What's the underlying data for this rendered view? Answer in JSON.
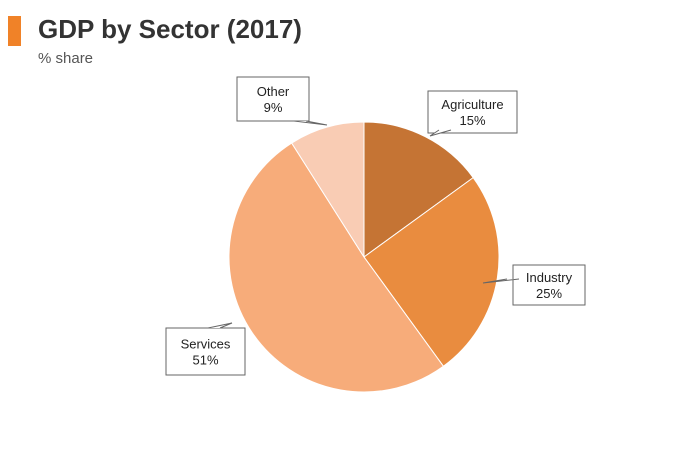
{
  "colors": {
    "accent": "#F08228"
  },
  "chart_data": {
    "type": "pie",
    "title": "GDP by Sector (2017)",
    "subtitle": "% share",
    "start_angle": "12 o'clock",
    "direction": "clockwise",
    "slices": [
      {
        "label": "Agriculture",
        "value": 15,
        "value_label": "15%",
        "color": "#C57434"
      },
      {
        "label": "Industry",
        "value": 25,
        "value_label": "25%",
        "color": "#E98C3F"
      },
      {
        "label": "Services",
        "value": 51,
        "value_label": "51%",
        "color": "#F7AC7A"
      },
      {
        "label": "Other",
        "value": 9,
        "value_label": "9%",
        "color": "#F9CCB4"
      }
    ]
  }
}
